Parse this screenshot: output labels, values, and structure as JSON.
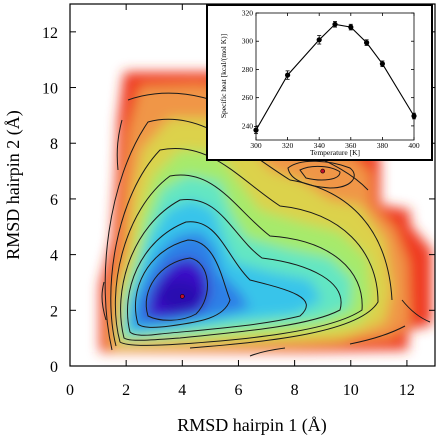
{
  "chart_data": [
    {
      "type": "heatmap",
      "xlabel": "RMSD hairpin 1 (Å)",
      "ylabel": "RMSD hairpin 2 (Å)",
      "xlim": [
        0,
        13
      ],
      "ylim": [
        0,
        13
      ],
      "xticks": [
        "0",
        "2",
        "4",
        "6",
        "8",
        "10",
        "12"
      ],
      "yticks": [
        "0",
        "2",
        "4",
        "6",
        "8",
        "10",
        "12"
      ],
      "colormap": [
        "#3a10c8",
        "#2f7fe6",
        "#38c4ea",
        "#64e6c2",
        "#a6ea6c",
        "#dcd24c",
        "#f09646",
        "#ef3a22"
      ],
      "minima": [
        {
          "x": 4.0,
          "y": 2.5
        },
        {
          "x": 9.0,
          "y": 7.0
        }
      ],
      "grid": false
    },
    {
      "type": "line",
      "xlabel": "Temperature [K]",
      "ylabel": "Specific heat [kcal/(mol K)]",
      "xlim": [
        300,
        400
      ],
      "ylim": [
        230,
        320
      ],
      "xticks": [
        "300",
        "320",
        "340",
        "360",
        "380",
        "400"
      ],
      "yticks": [
        "240",
        "260",
        "280",
        "300",
        "320"
      ],
      "x": [
        300,
        320,
        340,
        350,
        360,
        370,
        380,
        400
      ],
      "y": [
        237,
        276,
        301,
        312,
        310,
        299,
        284,
        247
      ],
      "err": [
        2.5,
        3,
        3,
        2,
        2,
        2,
        2,
        2
      ],
      "legend": "none"
    }
  ]
}
